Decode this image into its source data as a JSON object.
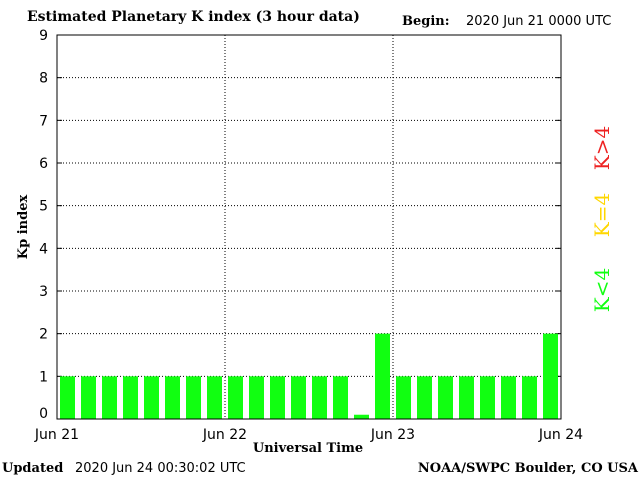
{
  "header": {
    "title": "Estimated Planetary K index (3 hour data)",
    "begin_label": "Begin:",
    "begin_value": "2020 Jun 21 0000 UTC"
  },
  "footer": {
    "updated_label": "Updated",
    "updated_value": "2020 Jun 24 00:30:02 UTC",
    "credit": "NOAA/SWPC Boulder, CO USA"
  },
  "legend": {
    "items": [
      {
        "label": "K<4",
        "color": "#11ff11"
      },
      {
        "label": "K=4",
        "color": "#ffd700"
      },
      {
        "label": "K>4",
        "color": "#ee2222"
      }
    ]
  },
  "colors": {
    "bar_below_4": "#11ff11",
    "bar_equal_4": "#ffd700",
    "bar_above_4": "#ee2222"
  },
  "chart_data": {
    "type": "bar",
    "title": "Estimated Planetary K index (3 hour data)",
    "xlabel": "Universal Time",
    "ylabel": "Kp index",
    "ylim": [
      0,
      9
    ],
    "yticks": [
      "0",
      "1",
      "2",
      "3",
      "4",
      "5",
      "6",
      "7",
      "8",
      "9"
    ],
    "xticks": [
      "Jun 21",
      "Jun 22",
      "Jun 23",
      "Jun 24"
    ],
    "grid": true,
    "interval_hours": 3,
    "values": [
      1,
      1,
      1,
      1,
      1,
      1,
      1,
      1,
      1,
      1,
      1,
      1,
      1,
      1,
      0.1,
      2,
      1,
      1,
      1,
      1,
      1,
      1,
      1,
      2
    ]
  }
}
